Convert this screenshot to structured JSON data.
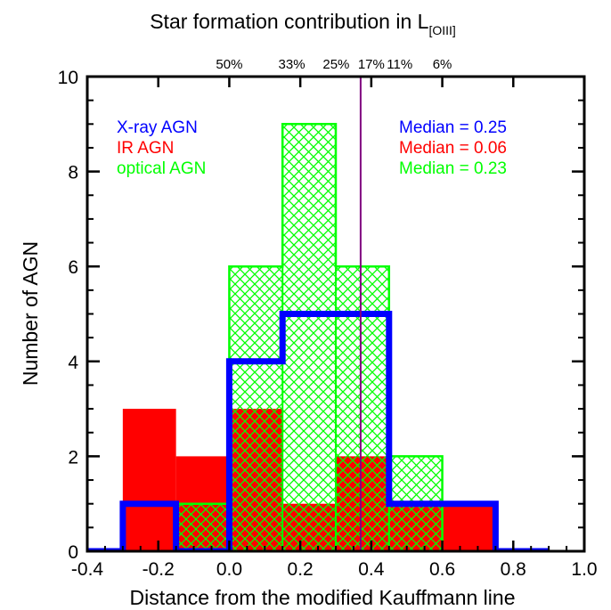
{
  "chart_data": {
    "type": "bar",
    "title": "Star formation contribution in L",
    "title_subscript": "[OIII]",
    "xlabel": "Distance from the modified Kauffmann line",
    "ylabel": "Number of AGN",
    "xlim": [
      -0.4,
      1.0
    ],
    "ylim": [
      0,
      10
    ],
    "x_ticks": [
      "-0.4",
      "-0.2",
      "0.0",
      "0.2",
      "0.4",
      "0.6",
      "0.8",
      "1.0"
    ],
    "y_ticks": [
      "0",
      "2",
      "4",
      "6",
      "8",
      "10"
    ],
    "top_axis": {
      "ticks": [
        {
          "label": "50%",
          "x": 0.0
        },
        {
          "label": "33%",
          "x": 0.176
        },
        {
          "label": "25%",
          "x": 0.301
        },
        {
          "label": "17%",
          "x": 0.4
        },
        {
          "label": "11%",
          "x": 0.48
        },
        {
          "label": "6%",
          "x": 0.6
        }
      ]
    },
    "bin_width": 0.15,
    "series": [
      {
        "name": "X-ray AGN",
        "style": "step-outline",
        "color": "#0000ff",
        "edges": [
          -0.45,
          -0.3,
          -0.15,
          0.0,
          0.15,
          0.3,
          0.45,
          0.6,
          0.75,
          0.9
        ],
        "values": [
          0,
          1,
          0,
          4,
          5,
          5,
          1,
          1,
          0
        ]
      },
      {
        "name": "IR AGN",
        "style": "filled",
        "color": "#ff0000",
        "edges": [
          -0.3,
          -0.15,
          0.0,
          0.15,
          0.3,
          0.45,
          0.6,
          0.75
        ],
        "values": [
          3,
          2,
          3,
          1,
          2,
          1,
          1
        ]
      },
      {
        "name": "optical AGN",
        "style": "crosshatch",
        "color": "#00ff00",
        "edges": [
          -0.15,
          0.0,
          0.15,
          0.3,
          0.45,
          0.6
        ],
        "values": [
          1,
          6,
          9,
          6,
          2
        ]
      }
    ],
    "legend": {
      "placement": "top-left",
      "entries": [
        {
          "label": "X-ray AGN",
          "color": "#0000ff"
        },
        {
          "label": "IR AGN",
          "color": "#ff0000"
        },
        {
          "label": "optical AGN",
          "color": "#00ff00"
        }
      ]
    },
    "medians": {
      "placement": "top-right",
      "entries": [
        {
          "label": "Median = 0.25",
          "color": "#0000ff"
        },
        {
          "label": "Median = 0.06",
          "color": "#ff0000"
        },
        {
          "label": "Median = 0.23",
          "color": "#00ff00"
        }
      ]
    },
    "reference_line": {
      "x": 0.37,
      "color": "#800080"
    }
  }
}
